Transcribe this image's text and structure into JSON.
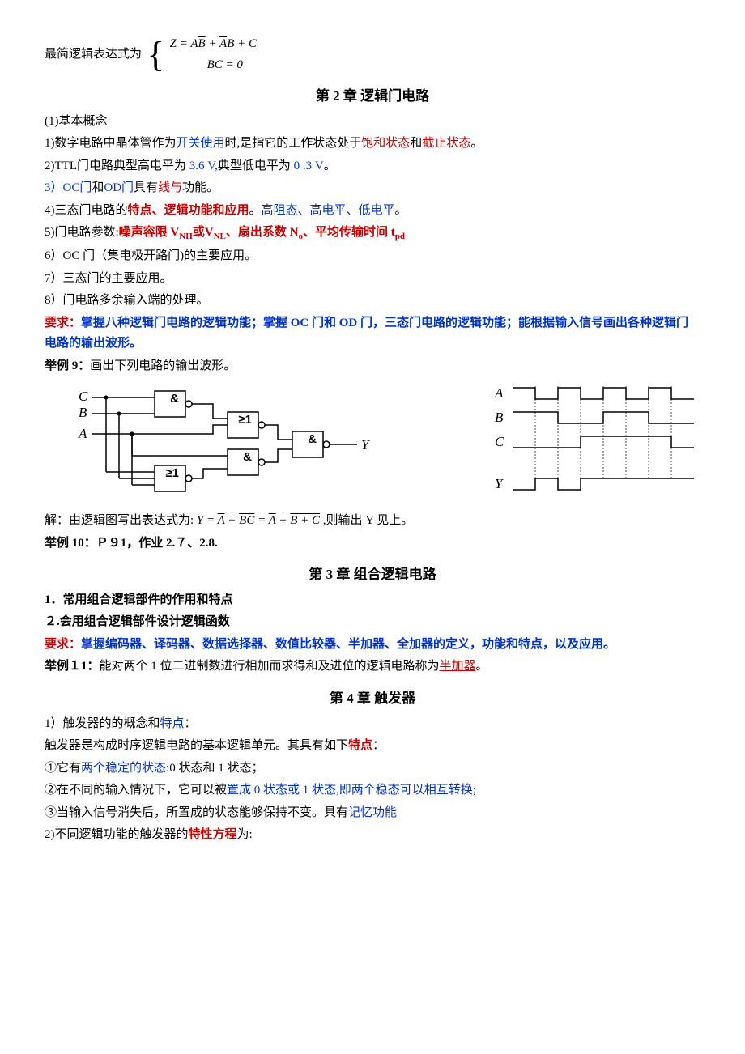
{
  "top": {
    "prefix": "最简逻辑表达式为",
    "eq1_lhs": "Z = ",
    "eq1_t1": "A",
    "eq1_t2": "B",
    "eq1_t3": "A",
    "eq1_t4": "B + C",
    "eq1_plus": " + ",
    "eq2": "BC = 0"
  },
  "ch2": {
    "title": "第 2 章  逻辑门电路",
    "s1": "(1)基本概念",
    "l1a": "1)数字电路中晶体管作为",
    "l1b": "开关使用",
    "l1c": "时,是指它的工作状态处于",
    "l1d": "饱和状态",
    "l1e": "和",
    "l1f": "截止状态",
    "l1g": "。",
    "l2a": "2)TTL门电路典型高电平为",
    "l2b": " 3.6 V,",
    "l2c": "典型低电平为",
    "l2d": " 0 .3     V",
    "l2e": "。",
    "l3a": "3）OC门",
    "l3b": "和",
    "l3c": "OD门",
    "l3d": "具有",
    "l3e": "线与",
    "l3f": "功能。",
    "l4a": "4)三态门电路的",
    "l4b": "特点、逻辑功能和应用",
    "l4c": "。",
    "l4d": "高阻态、高电平、低电平",
    "l4e": "。",
    "l5a": "5)门电路参数:",
    "l5b": "噪声容限 V",
    "l5b2": "NH",
    "l5b3": "或V",
    "l5b4": "NL",
    "l5b5": "、扇出系数 N",
    "l5b6": "o",
    "l5b7": "、平均传输时间 t",
    "l5b8": "pd",
    "l6": "6）OC 门（集电极开路门)的主要应用。",
    "l7": "7）三态门的主要应用。",
    "l8": "8）门电路多余输入端的处理。",
    "req1": "要求：",
    "req2": "掌握八种逻辑门电路的逻辑功能；掌握 OC 门和 OD 门，三态门电路的逻辑功能；能根据输入信号画出各种逻辑门电路的输出波形。",
    "ex9a": "举例 9：",
    "ex9b": "画出下列电路的输出波形。",
    "sol_a": "解：由逻辑图写出表达式为:",
    "sol_y": "Y",
    "sol_eq": " = ",
    "sol_t1": "A",
    "sol_p1": " + ",
    "sol_t2": "BC",
    "sol_p2": " = ",
    "sol_t3": "A",
    "sol_p3": " + ",
    "sol_t4": "B + C",
    "sol_b": " ,则输出 Y 见上。",
    "ex10": "举例 10：Ｐ９1，作业 2.７、2.8."
  },
  "ch3": {
    "title": "第 3 章  组合逻辑电路",
    "l1": "1．常用组合逻辑部件的作用和特点",
    "l2": "２.会用组合逻辑部件设计逻辑函数",
    "req1": "要求：",
    "req2": "掌握编码器、译码器、数据选择器、数值比较器、半加器、全加器的定义，功能和特点，以及应用。",
    "ex11a": "举例１1：",
    "ex11b": "能对两个 1 位二进制数进行相加而求得和及进位的逻辑电路称为",
    "ex11c": "半加器",
    "ex11d": "。"
  },
  "ch4": {
    "title": "第 4 章  触发器",
    "l1a": "1）触发器的的概念和",
    "l1b": "特点",
    "l1c": "：",
    "l2a": "触发器是构成时序逻辑电路的基本逻辑单元。其具有如下",
    "l2b": "特点",
    "l2c": "：",
    "l3a": "①它有",
    "l3b": "两个稳定的状态",
    "l3c": ":0 状态和 1 状态；",
    "l4a": "②在不同的输入情况下，它可以被",
    "l4b": "置成 0 状态或 1 状态,即两个稳态可以相互转换",
    "l4c": ";",
    "l5a": "③当输入信号消失后，所置成的状态能够保持不变。具有",
    "l5b": "记忆功能",
    "l6a": "2)不同逻辑功能的触发器的",
    "l6b": "特性方程",
    "l6c": "为:"
  },
  "circuit": {
    "C": "C",
    "B": "B",
    "A": "A",
    "Y": "Y",
    "nand": "&",
    "nor": "≥1",
    "wA": "A",
    "wB": "B",
    "wC": "C",
    "wY": "Y",
    "stroke": "#000000",
    "fill": "#ffffff",
    "font": "italic 17px 'Times New Roman'",
    "gatefont": "bold 15px sans-serif"
  }
}
